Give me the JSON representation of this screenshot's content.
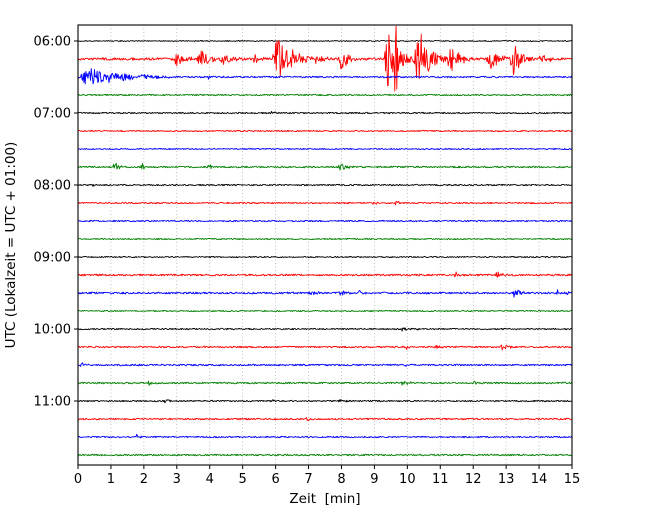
{
  "chart_data": {
    "type": "line",
    "title": "",
    "xlabel": "Zeit  [min]",
    "ylabel": "UTC (Lokalzeit = UTC + 01:00)",
    "x_range": [
      0,
      15
    ],
    "x_ticks": [
      0,
      1,
      2,
      3,
      4,
      5,
      6,
      7,
      8,
      9,
      10,
      11,
      12,
      13,
      14,
      15
    ],
    "hour_labels": [
      "06:00",
      "07:00",
      "08:00",
      "09:00",
      "10:00",
      "11:00"
    ],
    "grid": "vertical-dotted",
    "legend": "none",
    "trace_color_cycle": [
      "#000000",
      "#ff0000",
      "#0000ff",
      "#008000"
    ],
    "rows": [
      {
        "time": "06:00",
        "label": "06:00",
        "color": "#000000",
        "noise": 0.5,
        "events": []
      },
      {
        "time": "06:15",
        "label": "",
        "color": "#ff0000",
        "noise": 1.2,
        "events": [
          [
            2.9,
            3.6,
            6
          ],
          [
            3.6,
            4.3,
            10
          ],
          [
            4.3,
            5.0,
            7
          ],
          [
            5.3,
            5.7,
            5
          ],
          [
            5.9,
            7.1,
            22
          ],
          [
            7.2,
            7.6,
            8
          ],
          [
            7.9,
            8.6,
            10
          ],
          [
            9.3,
            10.2,
            26
          ],
          [
            9.6,
            9.78,
            42
          ],
          [
            10.2,
            11.2,
            24
          ],
          [
            10.3,
            10.48,
            40
          ],
          [
            11.2,
            12.0,
            14
          ],
          [
            12.4,
            13.1,
            12
          ],
          [
            13.1,
            13.9,
            16
          ],
          [
            14.0,
            14.6,
            6
          ]
        ]
      },
      {
        "time": "06:30",
        "label": "",
        "color": "#0000ff",
        "noise": 0.8,
        "events": [
          [
            0.0,
            2.8,
            9
          ],
          [
            2.0,
            2.35,
            3
          ],
          [
            3.9,
            4.2,
            2.5
          ]
        ]
      },
      {
        "time": "06:45",
        "label": "",
        "color": "#008000",
        "noise": 0.7,
        "events": []
      },
      {
        "time": "07:00",
        "label": "07:00",
        "color": "#000000",
        "noise": 0.7,
        "events": [
          [
            5.8,
            6.2,
            1.6
          ]
        ]
      },
      {
        "time": "07:15",
        "label": "",
        "color": "#ff0000",
        "noise": 0.6,
        "events": []
      },
      {
        "time": "07:30",
        "label": "",
        "color": "#0000ff",
        "noise": 0.6,
        "events": []
      },
      {
        "time": "07:45",
        "label": "",
        "color": "#008000",
        "noise": 0.8,
        "events": [
          [
            1.05,
            1.5,
            5
          ],
          [
            1.9,
            2.25,
            3.5
          ],
          [
            3.9,
            4.35,
            3
          ],
          [
            7.9,
            8.4,
            4.5
          ]
        ]
      },
      {
        "time": "08:00",
        "label": "08:00",
        "color": "#000000",
        "noise": 0.7,
        "events": [
          [
            0.4,
            0.75,
            2.5
          ]
        ]
      },
      {
        "time": "08:15",
        "label": "",
        "color": "#ff0000",
        "noise": 0.7,
        "events": [
          [
            8.9,
            9.5,
            2.2
          ],
          [
            9.6,
            10.0,
            1.8
          ]
        ]
      },
      {
        "time": "08:30",
        "label": "",
        "color": "#0000ff",
        "noise": 0.7,
        "events": []
      },
      {
        "time": "08:45",
        "label": "",
        "color": "#008000",
        "noise": 0.6,
        "events": []
      },
      {
        "time": "09:00",
        "label": "09:00",
        "color": "#000000",
        "noise": 0.6,
        "events": []
      },
      {
        "time": "09:15",
        "label": "",
        "color": "#ff0000",
        "noise": 0.9,
        "events": [
          [
            11.4,
            11.75,
            3
          ],
          [
            12.6,
            13.15,
            3.5
          ]
        ]
      },
      {
        "time": "09:30",
        "label": "",
        "color": "#0000ff",
        "noise": 0.9,
        "events": [
          [
            7.0,
            7.4,
            3
          ],
          [
            7.9,
            8.3,
            3.5
          ],
          [
            8.5,
            8.85,
            2.5
          ],
          [
            13.2,
            13.6,
            6
          ],
          [
            14.5,
            14.8,
            3
          ],
          [
            14.85,
            15.0,
            2
          ]
        ]
      },
      {
        "time": "09:45",
        "label": "",
        "color": "#008000",
        "noise": 0.6,
        "events": []
      },
      {
        "time": "10:00",
        "label": "10:00",
        "color": "#000000",
        "noise": 0.7,
        "events": [
          [
            9.8,
            10.35,
            2.5
          ]
        ]
      },
      {
        "time": "10:15",
        "label": "",
        "color": "#ff0000",
        "noise": 0.8,
        "events": [
          [
            9.9,
            10.2,
            3
          ],
          [
            10.8,
            11.15,
            2.5
          ],
          [
            12.8,
            13.25,
            3.5
          ]
        ]
      },
      {
        "time": "10:30",
        "label": "",
        "color": "#0000ff",
        "noise": 0.8,
        "events": [
          [
            0.05,
            0.4,
            3
          ],
          [
            9.9,
            10.15,
            2
          ]
        ]
      },
      {
        "time": "10:45",
        "label": "",
        "color": "#008000",
        "noise": 0.8,
        "events": [
          [
            2.1,
            2.45,
            2.5
          ],
          [
            9.8,
            10.25,
            2
          ],
          [
            11.9,
            12.35,
            2.5
          ]
        ]
      },
      {
        "time": "11:00",
        "label": "11:00",
        "color": "#000000",
        "noise": 0.7,
        "events": [
          [
            2.6,
            2.95,
            2
          ],
          [
            5.9,
            6.15,
            1.8
          ],
          [
            7.9,
            8.25,
            2
          ]
        ]
      },
      {
        "time": "11:15",
        "label": "",
        "color": "#ff0000",
        "noise": 0.8,
        "events": [
          [
            6.9,
            7.25,
            2
          ]
        ]
      },
      {
        "time": "11:30",
        "label": "",
        "color": "#0000ff",
        "noise": 0.7,
        "events": [
          [
            1.75,
            2.0,
            2.5
          ]
        ]
      },
      {
        "time": "11:45",
        "label": "",
        "color": "#008000",
        "noise": 0.8,
        "events": []
      }
    ]
  }
}
